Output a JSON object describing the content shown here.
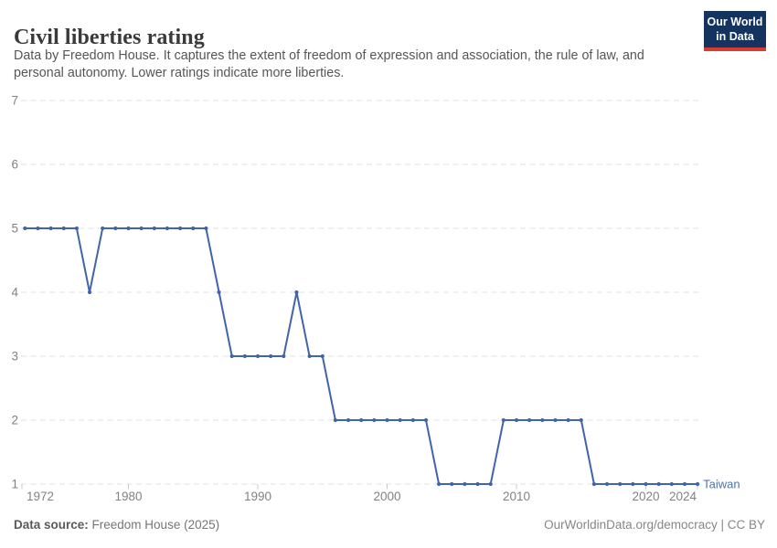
{
  "header": {
    "title": "Civil liberties rating",
    "subtitle_line1": "Data by Freedom House. It captures the extent of freedom of expression and association, the rule of law, and",
    "subtitle_line2": "personal autonomy. Lower ratings indicate more liberties."
  },
  "logo": {
    "line1": "Our World",
    "line2": "in Data"
  },
  "footer": {
    "source_label": "Data source:",
    "source_value": " Freedom House (2025)",
    "credit": "OurWorldinData.org/democracy | CC BY"
  },
  "colors": {
    "line": "#4165a8",
    "entity_label": "#4e73a9",
    "grid": "#e0e0e0",
    "tick": "#c8c8c8",
    "axis_text": "#828282",
    "logo_bg": "#14335e",
    "logo_accent": "#d73c32"
  },
  "chart_data": {
    "type": "line",
    "title": "Civil liberties rating",
    "grid": "horizontal dashed",
    "legend": "end-of-line label",
    "end_label": "Taiwan",
    "ylim": [
      1,
      7
    ],
    "yticks": [
      1,
      2,
      3,
      4,
      5,
      6,
      7
    ],
    "xlim": [
      1972,
      2024
    ],
    "xticks": [
      1972,
      1980,
      1990,
      2000,
      2010,
      2020,
      2024
    ],
    "series": [
      {
        "name": "Taiwan",
        "x": [
          1972,
          1973,
          1974,
          1975,
          1976,
          1977,
          1978,
          1979,
          1980,
          1981,
          1982,
          1983,
          1984,
          1985,
          1986,
          1987,
          1988,
          1989,
          1990,
          1991,
          1992,
          1993,
          1994,
          1995,
          1996,
          1997,
          1998,
          1999,
          2000,
          2001,
          2002,
          2003,
          2004,
          2005,
          2006,
          2007,
          2008,
          2009,
          2010,
          2011,
          2012,
          2013,
          2014,
          2015,
          2016,
          2017,
          2018,
          2019,
          2020,
          2021,
          2022,
          2023,
          2024
        ],
        "values": [
          5,
          5,
          5,
          5,
          5,
          4,
          5,
          5,
          5,
          5,
          5,
          5,
          5,
          5,
          5,
          4,
          3,
          3,
          3,
          3,
          3,
          4,
          3,
          3,
          2,
          2,
          2,
          2,
          2,
          2,
          2,
          2,
          1,
          1,
          1,
          1,
          1,
          2,
          2,
          2,
          2,
          2,
          2,
          2,
          1,
          1,
          1,
          1,
          1,
          1,
          1,
          1,
          1
        ]
      }
    ]
  }
}
